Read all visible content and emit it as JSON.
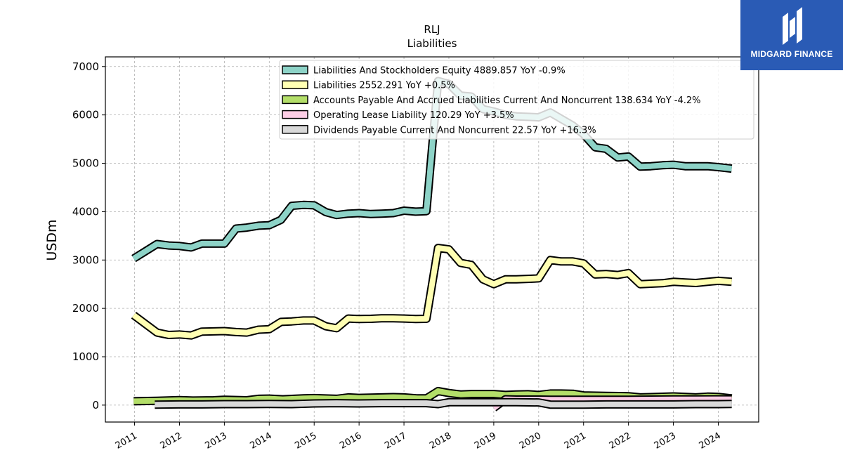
{
  "brand": {
    "name": "MIDGARD FINANCE"
  },
  "chart_data": {
    "type": "area",
    "title": "RLJ",
    "subtitle": "Liabilities",
    "ylabel": "USDm",
    "ylim": [
      -350,
      7200
    ],
    "xlim": [
      2010.35,
      2024.9
    ],
    "yticks": [
      0,
      1000,
      2000,
      3000,
      4000,
      5000,
      6000,
      7000
    ],
    "xticks": [
      "2011",
      "2012",
      "2013",
      "2014",
      "2015",
      "2016",
      "2017",
      "2018",
      "2019",
      "2020",
      "2021",
      "2022",
      "2023",
      "2024"
    ],
    "grid": true,
    "legend_position": "top-right",
    "series": [
      {
        "name": "Liabilities And Stockholders Equity",
        "legend": "Liabilities And Stockholders Equity  4889.857 YoY -0.9%",
        "color": "#8dd3c7",
        "x": [
          2010.98,
          2011.24,
          2011.5,
          2011.76,
          2012.0,
          2012.26,
          2012.5,
          2012.76,
          2013.0,
          2013.26,
          2013.5,
          2013.76,
          2014.0,
          2014.26,
          2014.5,
          2014.76,
          2015.0,
          2015.26,
          2015.5,
          2015.76,
          2016.0,
          2016.26,
          2016.5,
          2016.76,
          2017.0,
          2017.26,
          2017.5,
          2017.76,
          2018.0,
          2018.26,
          2018.5,
          2018.76,
          2019.0,
          2019.26,
          2019.5,
          2019.76,
          2020.0,
          2020.26,
          2020.5,
          2020.76,
          2021.0,
          2021.26,
          2021.5,
          2021.76,
          2022.0,
          2022.26,
          2022.5,
          2022.76,
          2023.0,
          2023.26,
          2023.5,
          2023.76,
          2024.0,
          2024.3
        ],
        "values": [
          3030,
          3180,
          3330,
          3300,
          3290,
          3260,
          3340,
          3340,
          3340,
          3650,
          3670,
          3710,
          3720,
          3830,
          4120,
          4140,
          4130,
          3990,
          3930,
          3960,
          3970,
          3950,
          3960,
          3970,
          4020,
          4000,
          4010,
          6700,
          6640,
          6400,
          6380,
          6120,
          6070,
          6000,
          5970,
          5960,
          5950,
          6050,
          5920,
          5780,
          5600,
          5330,
          5300,
          5120,
          5140,
          4930,
          4940,
          4960,
          4970,
          4940,
          4940,
          4940,
          4920,
          4890
        ]
      },
      {
        "name": "Liabilities",
        "legend": "Liabilities  2552.291 YoY +0.5%",
        "color": "#ffffb3",
        "x": [
          2010.98,
          2011.24,
          2011.5,
          2011.76,
          2012.0,
          2012.26,
          2012.5,
          2012.76,
          2013.0,
          2013.26,
          2013.5,
          2013.76,
          2014.0,
          2014.26,
          2014.5,
          2014.76,
          2015.0,
          2015.26,
          2015.5,
          2015.76,
          2016.0,
          2016.26,
          2016.5,
          2016.76,
          2017.0,
          2017.26,
          2017.5,
          2017.76,
          2018.0,
          2018.26,
          2018.5,
          2018.76,
          2019.0,
          2019.26,
          2019.5,
          2019.76,
          2020.0,
          2020.26,
          2020.5,
          2020.76,
          2021.0,
          2021.26,
          2021.5,
          2021.76,
          2022.0,
          2022.26,
          2022.5,
          2022.76,
          2023.0,
          2023.26,
          2023.5,
          2023.76,
          2024.0,
          2024.3
        ],
        "values": [
          1860,
          1680,
          1500,
          1450,
          1460,
          1440,
          1520,
          1525,
          1530,
          1510,
          1500,
          1560,
          1570,
          1720,
          1730,
          1750,
          1750,
          1630,
          1590,
          1790,
          1780,
          1785,
          1795,
          1795,
          1790,
          1780,
          1785,
          3250,
          3220,
          2940,
          2900,
          2600,
          2500,
          2600,
          2600,
          2610,
          2620,
          3000,
          2970,
          2970,
          2930,
          2700,
          2710,
          2690,
          2730,
          2500,
          2510,
          2520,
          2550,
          2535,
          2525,
          2550,
          2570,
          2550
        ]
      },
      {
        "name": "Accounts Payable And Accrued Liabilities Current And Noncurrent",
        "legend": "Accounts Payable And Accrued Liabilities Current And Noncurrent  138.634 YoY -4.2%",
        "color": "#b3de69",
        "x": [
          2010.98,
          2011.5,
          2012.0,
          2012.3,
          2012.76,
          2013.0,
          2013.5,
          2013.76,
          2014.0,
          2014.3,
          2014.76,
          2015.0,
          2015.5,
          2015.76,
          2016.0,
          2016.5,
          2016.76,
          2017.0,
          2017.3,
          2017.5,
          2017.76,
          2018.0,
          2018.26,
          2018.5,
          2018.76,
          2019.0,
          2019.26,
          2019.5,
          2019.76,
          2020.0,
          2020.26,
          2020.5,
          2020.76,
          2021.0,
          2021.5,
          2022.0,
          2022.26,
          2022.5,
          2023.0,
          2023.5,
          2023.76,
          2024.0,
          2024.3
        ],
        "values": [
          80,
          90,
          105,
          95,
          100,
          110,
          100,
          130,
          135,
          120,
          140,
          145,
          130,
          160,
          150,
          160,
          165,
          160,
          140,
          140,
          290,
          250,
          220,
          230,
          230,
          230,
          210,
          220,
          225,
          210,
          240,
          240,
          235,
          200,
          190,
          185,
          160,
          165,
          180,
          160,
          175,
          170,
          140
        ]
      },
      {
        "name": "Operating Lease Liability",
        "legend": "Operating Lease Liability  120.29 YoY +3.5%",
        "color": "#fccde5",
        "x": [
          2019.0,
          2019.26,
          2019.5,
          2019.76,
          2020.0,
          2020.26,
          2020.5,
          2020.76,
          2021.0,
          2021.5,
          2022.0,
          2022.5,
          2023.0,
          2023.5,
          2024.0,
          2024.3
        ],
        "values": [
          -60,
          120,
          115,
          115,
          115,
          110,
          110,
          110,
          110,
          110,
          112,
          115,
          117,
          118,
          120,
          120
        ]
      },
      {
        "name": "Dividends Payable Current And Noncurrent",
        "legend": "Dividends Payable Current And Noncurrent  22.57 YoY +16.3%",
        "color": "#d9d9d9",
        "x": [
          2011.45,
          2012.0,
          2012.5,
          2013.0,
          2013.5,
          2014.0,
          2014.5,
          2015.0,
          2015.5,
          2016.0,
          2016.5,
          2017.0,
          2017.5,
          2017.76,
          2018.0,
          2018.5,
          2019.0,
          2019.5,
          2020.0,
          2020.26,
          2020.5,
          2021.0,
          2021.5,
          2022.0,
          2022.5,
          2023.0,
          2023.5,
          2024.0,
          2024.3
        ],
        "values": [
          10,
          15,
          15,
          20,
          20,
          25,
          20,
          35,
          40,
          35,
          40,
          40,
          40,
          20,
          60,
          60,
          60,
          60,
          55,
          10,
          10,
          10,
          15,
          15,
          15,
          15,
          20,
          20,
          22.57
        ]
      }
    ]
  }
}
